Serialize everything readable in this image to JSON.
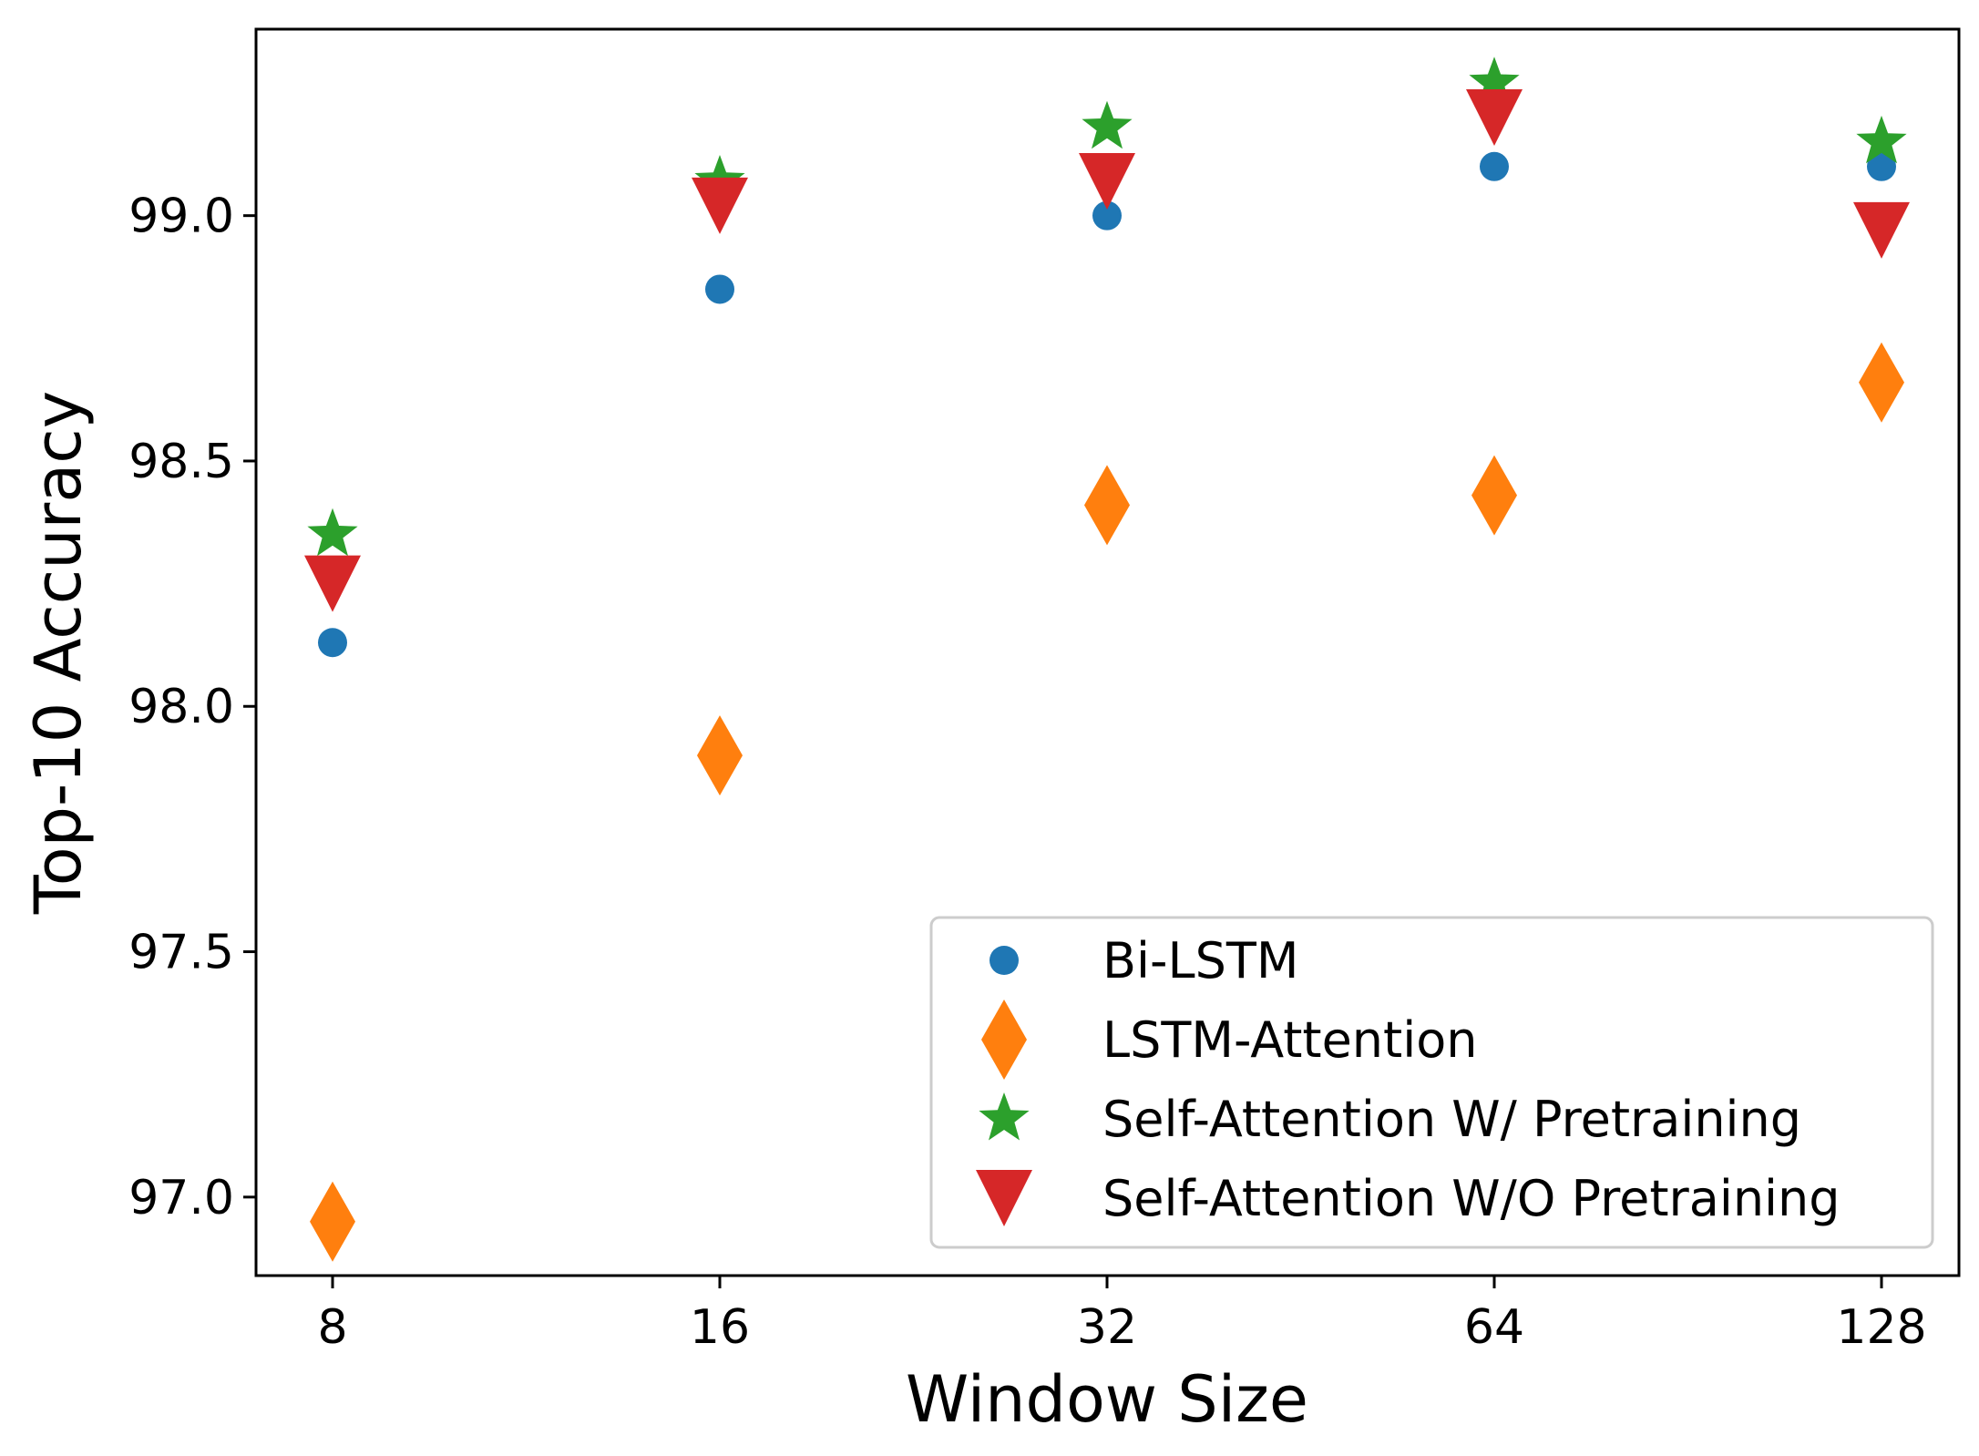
{
  "chart_data": {
    "type": "scatter",
    "title": "",
    "xlabel": "Window Size",
    "ylabel": "Top-10 Accuracy",
    "categories": [
      "8",
      "16",
      "32",
      "64",
      "128"
    ],
    "ylim": [
      96.84,
      99.38
    ],
    "yticks": [
      "97.0",
      "97.5",
      "98.0",
      "98.5",
      "99.0"
    ],
    "grid": false,
    "legend_position": "lower-right",
    "series": [
      {
        "name": "Bi-LSTM",
        "marker": "circle",
        "color": "#1f77b4",
        "values": [
          98.13,
          98.85,
          99.0,
          99.1,
          99.1
        ]
      },
      {
        "name": "LSTM-Attention",
        "marker": "diamond",
        "color": "#ff7f0e",
        "values": [
          96.95,
          97.9,
          98.41,
          98.43,
          98.66
        ]
      },
      {
        "name": "Self-Attention W/ Pretraining",
        "marker": "star",
        "color": "#2ca02c",
        "values": [
          98.35,
          99.07,
          99.18,
          99.27,
          99.15
        ]
      },
      {
        "name": "Self-Attention W/O Pretraining",
        "marker": "triangle-down",
        "color": "#d62728",
        "values": [
          98.25,
          99.02,
          99.07,
          99.2,
          98.97
        ]
      }
    ]
  }
}
